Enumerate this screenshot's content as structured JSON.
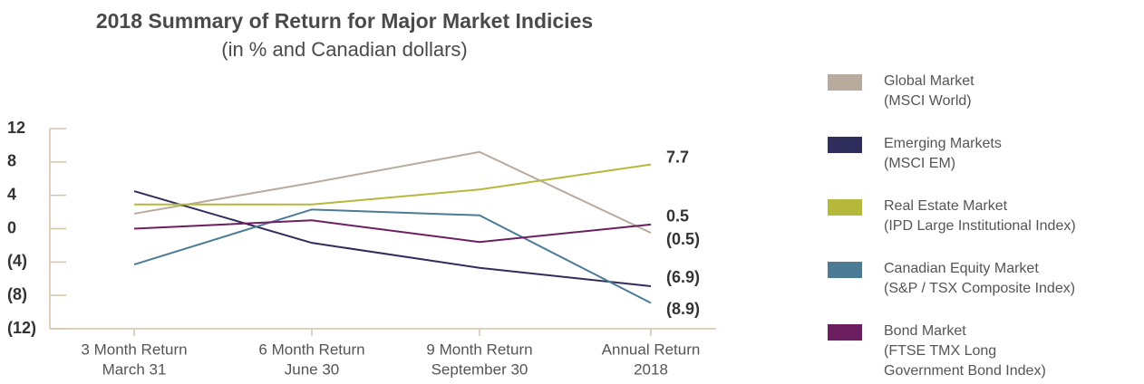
{
  "chart_data": {
    "type": "line",
    "title": "2018 Summary of Return for Major Market Indicies",
    "subtitle": "(in % and Canadian dollars)",
    "categories": [
      [
        "3 Month Return",
        "March 31"
      ],
      [
        "6 Month Return",
        "June 30"
      ],
      [
        "9 Month Return",
        "September 30"
      ],
      [
        "Annual Return",
        "2018"
      ]
    ],
    "ylim": [
      -12,
      12
    ],
    "yticks": [
      12,
      8,
      4,
      0,
      {
        "value": -4,
        "label": "(4)"
      },
      {
        "value": -8,
        "label": "(8)"
      },
      {
        "value": -12,
        "label": "(12)"
      }
    ],
    "series": [
      {
        "name": "Global Market",
        "description": [
          "(MSCI World)"
        ],
        "color": "#b8aa9d",
        "values": [
          1.8,
          5.5,
          9.2,
          -0.5
        ],
        "value_labels": [
          null,
          null,
          null,
          "(0.5)"
        ]
      },
      {
        "name": "Emerging Markets",
        "description": [
          "(MSCI EM)"
        ],
        "color": "#2e2d5c",
        "values": [
          4.5,
          -1.7,
          -4.7,
          -6.9
        ],
        "value_labels": [
          null,
          null,
          null,
          "(6.9)"
        ]
      },
      {
        "name": "Real Estate Market",
        "description": [
          "(IPD Large Institutional Index)"
        ],
        "color": "#b6b83b",
        "values": [
          2.9,
          2.9,
          4.7,
          7.7
        ],
        "value_labels": [
          null,
          null,
          null,
          "7.7"
        ]
      },
      {
        "name": "Canadian Equity Market",
        "description": [
          "(S&P / TSX Composite Index)"
        ],
        "color": "#4b7b95",
        "values": [
          -4.3,
          2.3,
          1.6,
          -8.9
        ],
        "value_labels": [
          null,
          null,
          null,
          "(8.9)"
        ]
      },
      {
        "name": "Bond Market",
        "description": [
          "(FTSE TMX Long",
          "Government Bond Index)"
        ],
        "color": "#6c1f60",
        "values": [
          0,
          1.0,
          -1.6,
          0.5
        ],
        "value_labels": [
          null,
          null,
          null,
          "0.5"
        ]
      }
    ]
  }
}
